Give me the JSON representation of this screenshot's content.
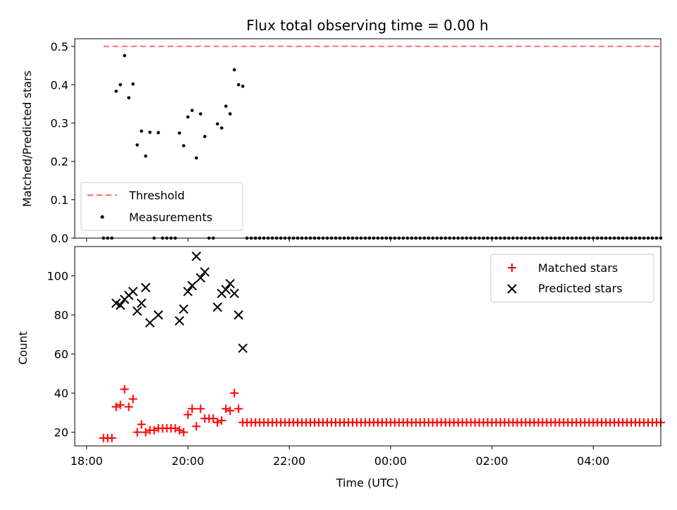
{
  "chart_data": [
    {
      "type": "scatter",
      "title": "Flux total observing time = 0.00 h",
      "xlabel": "",
      "ylabel": "Matched/Predicted stars",
      "ylim": [
        0,
        0.52
      ],
      "yticks": [
        "0.0",
        "0.1",
        "0.2",
        "0.3",
        "0.4",
        "0.5"
      ],
      "legend": {
        "placement": "lower-left"
      },
      "series": [
        {
          "name": "Threshold",
          "kind": "dashed-line",
          "color": "#ff7070",
          "x": [
            "18:20",
            "05:20"
          ],
          "y": [
            0.5,
            0.5
          ]
        },
        {
          "name": "Measurements",
          "kind": "dots",
          "color": "#000000",
          "points": [
            [
              "18:20",
              0.0
            ],
            [
              "18:25",
              0.0
            ],
            [
              "18:30",
              0.0
            ],
            [
              "18:35",
              0.383
            ],
            [
              "18:40",
              0.4
            ],
            [
              "18:45",
              0.476
            ],
            [
              "18:50",
              0.366
            ],
            [
              "18:55",
              0.402
            ],
            [
              "19:00",
              0.243
            ],
            [
              "19:05",
              0.279
            ],
            [
              "19:10",
              0.214
            ],
            [
              "19:15",
              0.276
            ],
            [
              "19:20",
              0.0
            ],
            [
              "19:25",
              0.275
            ],
            [
              "19:30",
              0.0
            ],
            [
              "19:35",
              0.0
            ],
            [
              "19:40",
              0.0
            ],
            [
              "19:45",
              0.0
            ],
            [
              "19:50",
              0.274
            ],
            [
              "19:55",
              0.241
            ],
            [
              "20:00",
              0.316
            ],
            [
              "20:05",
              0.333
            ],
            [
              "20:10",
              0.209
            ],
            [
              "20:15",
              0.324
            ],
            [
              "20:20",
              0.265
            ],
            [
              "20:25",
              0.0
            ],
            [
              "20:30",
              0.0
            ],
            [
              "20:35",
              0.298
            ],
            [
              "20:40",
              0.287
            ],
            [
              "20:45",
              0.344
            ],
            [
              "20:50",
              0.324
            ],
            [
              "20:55",
              0.439
            ],
            [
              "21:00",
              0.4
            ],
            [
              "21:05",
              0.396
            ],
            [
              "21:10",
              0.0
            ]
          ],
          "zero_tail": {
            "from": "21:10",
            "to": "05:20",
            "step_minutes": 5,
            "value": 0.0
          }
        }
      ]
    },
    {
      "type": "scatter",
      "title": "",
      "xlabel": "Time (UTC)",
      "ylabel": "Count",
      "ylim": [
        13,
        115
      ],
      "yticks": [
        "20",
        "40",
        "60",
        "80",
        "100"
      ],
      "xticks": [
        "18:00",
        "20:00",
        "22:00",
        "00:00",
        "02:00",
        "04:00"
      ],
      "legend": {
        "placement": "upper-right"
      },
      "series": [
        {
          "name": "Matched stars",
          "marker": "+",
          "color": "#ff0000",
          "points": [
            [
              "18:20",
              17
            ],
            [
              "18:25",
              17
            ],
            [
              "18:30",
              17
            ],
            [
              "18:35",
              33
            ],
            [
              "18:40",
              34
            ],
            [
              "18:45",
              42
            ],
            [
              "18:50",
              33
            ],
            [
              "18:55",
              37
            ],
            [
              "19:00",
              20
            ],
            [
              "19:05",
              24
            ],
            [
              "19:10",
              20
            ],
            [
              "19:15",
              21
            ],
            [
              "19:20",
              21
            ],
            [
              "19:25",
              22
            ],
            [
              "19:30",
              22
            ],
            [
              "19:35",
              22
            ],
            [
              "19:40",
              22
            ],
            [
              "19:45",
              22
            ],
            [
              "19:50",
              21
            ],
            [
              "19:55",
              20
            ],
            [
              "20:00",
              29
            ],
            [
              "20:05",
              32
            ],
            [
              "20:10",
              23
            ],
            [
              "20:15",
              32
            ],
            [
              "20:20",
              27
            ],
            [
              "20:25",
              27
            ],
            [
              "20:30",
              27
            ],
            [
              "20:35",
              25
            ],
            [
              "20:40",
              26
            ],
            [
              "20:45",
              32
            ],
            [
              "20:50",
              31
            ],
            [
              "20:55",
              40
            ],
            [
              "21:00",
              32
            ],
            [
              "21:05",
              25
            ],
            [
              "21:10",
              25
            ]
          ],
          "constant_tail": {
            "from": "21:10",
            "to": "05:20",
            "step_minutes": 5,
            "value": 25
          }
        },
        {
          "name": "Predicted stars",
          "marker": "x",
          "color": "#000000",
          "points": [
            [
              "18:35",
              86
            ],
            [
              "18:40",
              85
            ],
            [
              "18:45",
              88
            ],
            [
              "18:50",
              90
            ],
            [
              "18:55",
              92
            ],
            [
              "19:00",
              82
            ],
            [
              "19:05",
              86
            ],
            [
              "19:10",
              94
            ],
            [
              "19:15",
              76
            ],
            [
              "19:25",
              80
            ],
            [
              "19:50",
              77
            ],
            [
              "19:55",
              83
            ],
            [
              "20:00",
              92
            ],
            [
              "20:05",
              95
            ],
            [
              "20:10",
              110
            ],
            [
              "20:15",
              99
            ],
            [
              "20:20",
              102
            ],
            [
              "20:35",
              84
            ],
            [
              "20:40",
              91
            ],
            [
              "20:45",
              93
            ],
            [
              "20:50",
              96
            ],
            [
              "20:55",
              91
            ],
            [
              "21:00",
              80
            ],
            [
              "21:05",
              63
            ]
          ]
        }
      ]
    }
  ]
}
